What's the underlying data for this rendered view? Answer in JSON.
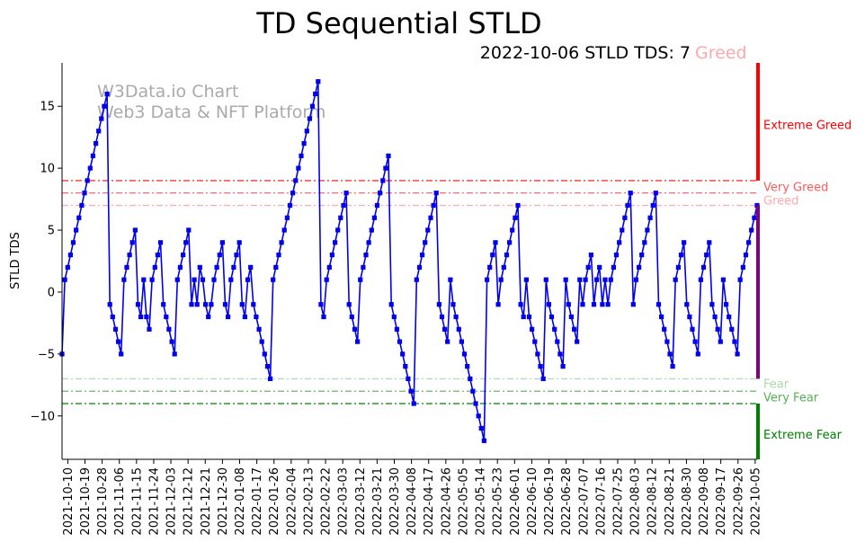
{
  "chart_data": {
    "type": "line",
    "title": "TD Sequential STLD",
    "subtitle": "2022-10-06 STLD TDS: 7",
    "sentiment": "Greed",
    "ylabel": "STLD TDS",
    "xlabel": "",
    "ylim": [
      -13.5,
      18.5
    ],
    "yticks": [
      15,
      10,
      5,
      0,
      -5,
      -10
    ],
    "x_start": "2021-10-07",
    "x_end": "2022-10-06",
    "xticks": [
      "2021-10-10",
      "2021-10-19",
      "2021-10-28",
      "2021-11-06",
      "2021-11-15",
      "2021-11-24",
      "2021-12-03",
      "2021-12-12",
      "2021-12-21",
      "2021-12-30",
      "2022-01-08",
      "2022-01-17",
      "2022-01-26",
      "2022-02-04",
      "2022-02-13",
      "2022-02-22",
      "2022-03-03",
      "2022-03-12",
      "2022-03-21",
      "2022-03-30",
      "2022-04-08",
      "2022-04-17",
      "2022-04-26",
      "2022-05-05",
      "2022-05-14",
      "2022-05-23",
      "2022-06-01",
      "2022-06-10",
      "2022-06-19",
      "2022-06-28",
      "2022-07-07",
      "2022-07-16",
      "2022-07-25",
      "2022-08-03",
      "2022-08-12",
      "2022-08-21",
      "2022-08-30",
      "2022-09-08",
      "2022-09-17",
      "2022-09-26",
      "2022-10-05"
    ],
    "watermark": [
      "W3Data.io Chart",
      "Web3 Data & NFT Platform"
    ],
    "grid": false,
    "series": [
      {
        "color": "#0000ee",
        "values": [
          -5,
          1,
          2,
          3,
          4,
          5,
          6,
          7,
          8,
          9,
          10,
          11,
          12,
          13,
          14,
          15,
          16,
          -1,
          -2,
          -3,
          -4,
          -5,
          1,
          2,
          3,
          4,
          5,
          -1,
          -2,
          1,
          -2,
          -3,
          1,
          2,
          3,
          4,
          -1,
          -2,
          -3,
          -4,
          -5,
          1,
          2,
          3,
          4,
          5,
          -1,
          1,
          -1,
          2,
          1,
          -1,
          -2,
          -1,
          1,
          2,
          3,
          4,
          -1,
          -2,
          1,
          2,
          3,
          4,
          -1,
          -2,
          1,
          2,
          -1,
          -2,
          -3,
          -4,
          -5,
          -6,
          -7,
          1,
          2,
          3,
          4,
          5,
          6,
          7,
          8,
          9,
          10,
          11,
          12,
          13,
          14,
          15,
          16,
          17,
          -1,
          -2,
          1,
          2,
          3,
          4,
          5,
          6,
          7,
          8,
          -1,
          -2,
          -3,
          -4,
          1,
          2,
          3,
          4,
          5,
          6,
          7,
          8,
          9,
          10,
          11,
          -1,
          -2,
          -3,
          -4,
          -5,
          -6,
          -7,
          -8,
          -9,
          1,
          2,
          3,
          4,
          5,
          6,
          7,
          8,
          -1,
          -2,
          -3,
          -4,
          1,
          -1,
          -2,
          -3,
          -4,
          -5,
          -6,
          -7,
          -8,
          -9,
          -10,
          -11,
          -12,
          1,
          2,
          3,
          4,
          -1,
          1,
          2,
          3,
          4,
          5,
          6,
          7,
          -1,
          -2,
          1,
          -2,
          -3,
          -4,
          -5,
          -6,
          -7,
          1,
          -1,
          -2,
          -3,
          -4,
          -5,
          -6,
          1,
          -1,
          -2,
          -3,
          -4,
          1,
          -1,
          1,
          2,
          3,
          -1,
          1,
          2,
          -1,
          1,
          -1,
          1,
          2,
          3,
          4,
          5,
          6,
          7,
          8,
          -1,
          1,
          2,
          3,
          4,
          5,
          6,
          7,
          8,
          -1,
          -2,
          -3,
          -4,
          -5,
          -6,
          1,
          2,
          3,
          4,
          -1,
          -2,
          -3,
          -4,
          -5,
          1,
          2,
          3,
          4,
          -1,
          -2,
          -3,
          -4,
          1,
          -1,
          -2,
          -3,
          -4,
          -5,
          1,
          2,
          3,
          4,
          5,
          6,
          7
        ]
      }
    ],
    "reference_lines": [
      {
        "value": 9,
        "color": "#ff0000",
        "style": "dashdot"
      },
      {
        "value": 8,
        "color": "#ff5a5a",
        "style": "dashdot"
      },
      {
        "value": 7,
        "color": "#ffaaaa",
        "style": "dashdot"
      },
      {
        "value": -7,
        "color": "#aadaaa",
        "style": "dashdot"
      },
      {
        "value": -8,
        "color": "#55b055",
        "style": "dashdot"
      },
      {
        "value": -9,
        "color": "#008000",
        "style": "dashdot"
      }
    ],
    "zones": [
      {
        "label": "Extreme Greed",
        "at": 13.5,
        "color": "#ff0000"
      },
      {
        "label": "Very Greed",
        "at": 8.5,
        "color": "#ff5a5a"
      },
      {
        "label": "Greed",
        "at": 7.4,
        "color": "#ffaaaa"
      },
      {
        "label": "Fear",
        "at": -7.4,
        "color": "#aadaaa"
      },
      {
        "label": "Very Fear",
        "at": -8.5,
        "color": "#55b055"
      },
      {
        "label": "Extreme Fear",
        "at": -11.5,
        "color": "#008000"
      }
    ],
    "side_bar": [
      {
        "from": 9,
        "to": 18.5,
        "color": "#ff0000"
      },
      {
        "from": -7,
        "to": 7,
        "color": "#800080"
      },
      {
        "from": -9,
        "to": -13.5,
        "color": "#008000"
      }
    ],
    "sentiment_color": "#ffaaaa"
  }
}
